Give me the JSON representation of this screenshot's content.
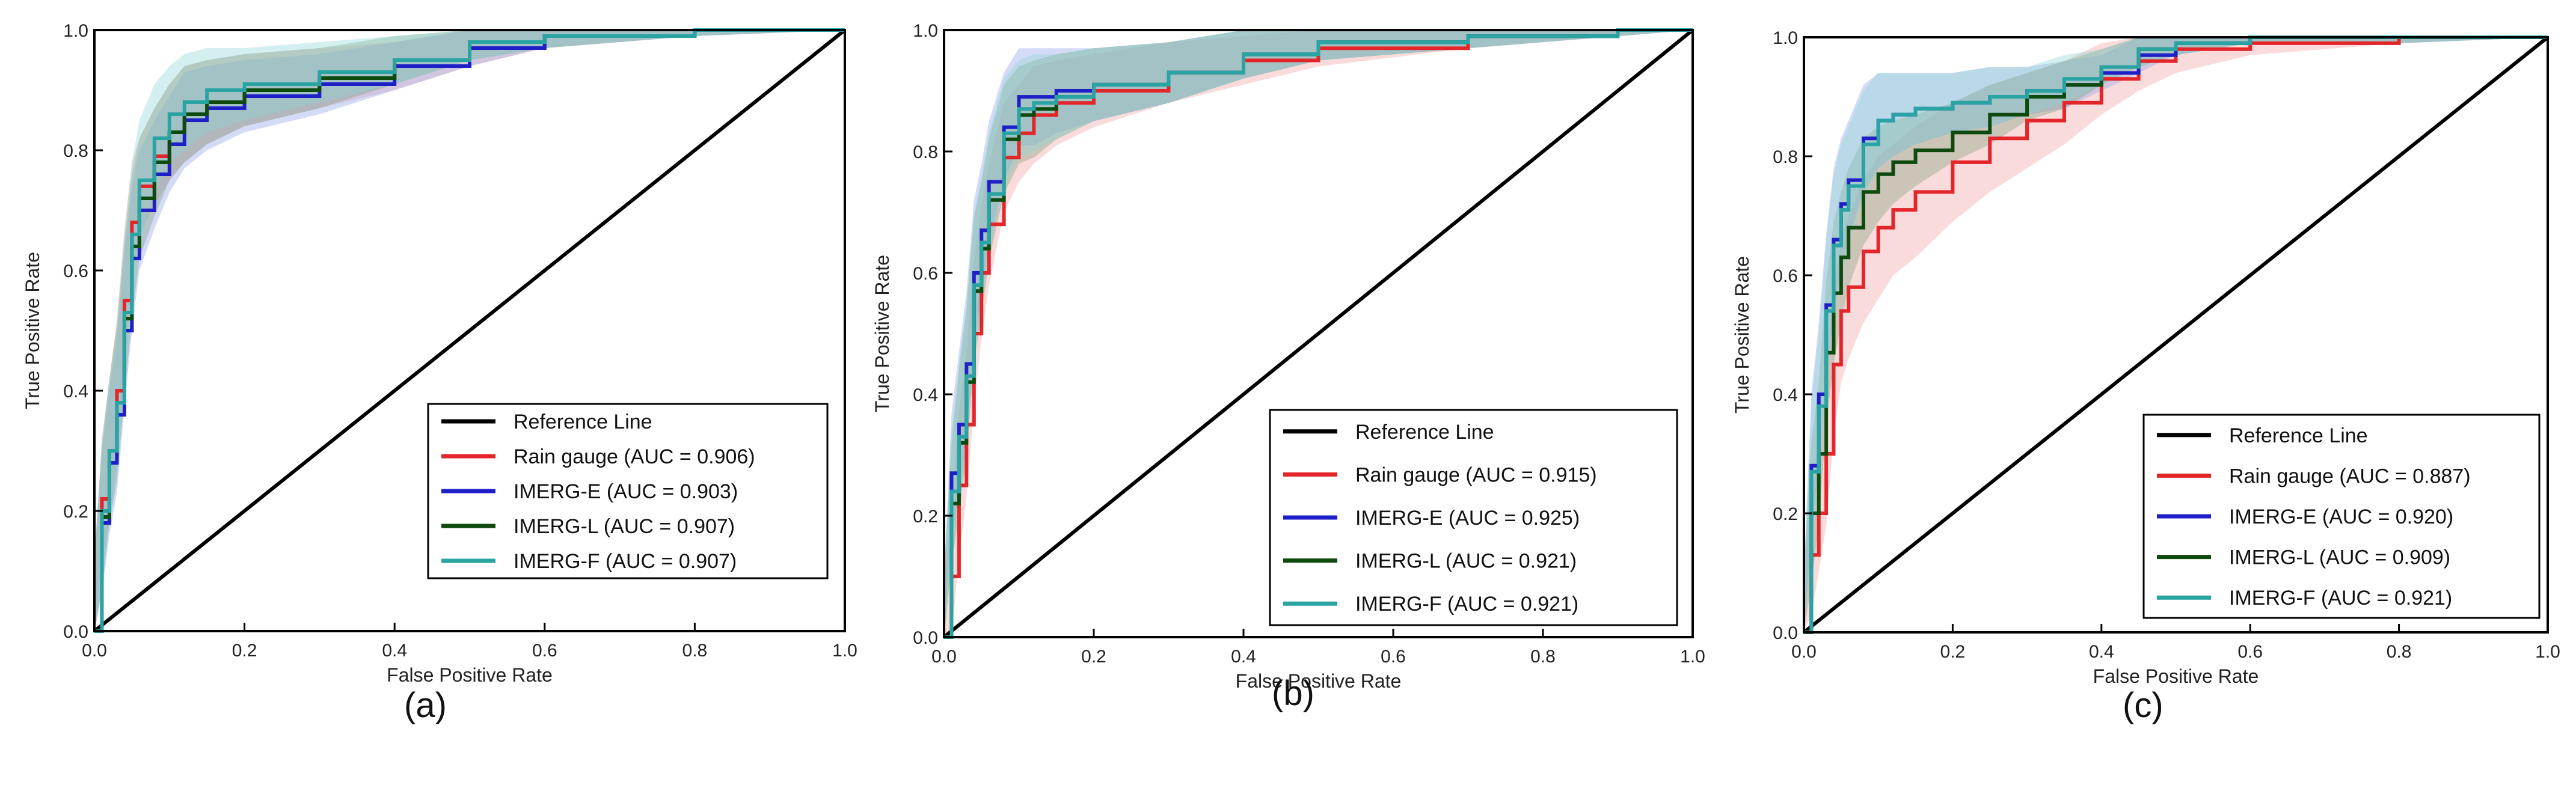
{
  "figure": {
    "panel_labels": [
      "(a)",
      "(b)",
      "(c)"
    ]
  },
  "chart_data": [
    {
      "type": "line",
      "subtype": "roc",
      "panel": "(a)",
      "title": "",
      "xlabel": "False Positive Rate",
      "ylabel": "True Positive Rate",
      "xlim": [
        0.0,
        1.0
      ],
      "ylim": [
        0.0,
        1.0
      ],
      "xticks": [
        "0.0",
        "0.2",
        "0.4",
        "0.6",
        "0.8",
        "1.0"
      ],
      "yticks": [
        "0.0",
        "0.2",
        "0.4",
        "0.6",
        "0.8",
        "1.0"
      ],
      "legend_position": "lower-right",
      "reference": {
        "name": "Reference Line",
        "color": "#000000",
        "x": [
          0,
          1
        ],
        "y": [
          0,
          1
        ]
      },
      "series": [
        {
          "name": "Rain gauge (AUC = 0.906)",
          "color": "#e3262a",
          "x": [
            0,
            0.01,
            0.02,
            0.03,
            0.04,
            0.05,
            0.06,
            0.08,
            0.1,
            0.12,
            0.15,
            0.2,
            0.3,
            0.4,
            0.5,
            0.6,
            0.8,
            1.0
          ],
          "y": [
            0,
            0.22,
            0.3,
            0.4,
            0.55,
            0.68,
            0.74,
            0.79,
            0.83,
            0.86,
            0.88,
            0.9,
            0.92,
            0.94,
            0.97,
            0.99,
            1.0,
            1.0
          ],
          "band": [
            0.12,
            0.1,
            0.12,
            0.12,
            0.12,
            0.1,
            0.08,
            0.08,
            0.08,
            0.08,
            0.07,
            0.06,
            0.05,
            0.04,
            0.03,
            0.02,
            0.01,
            0
          ]
        },
        {
          "name": "IMERG-E (AUC = 0.903)",
          "color": "#1f1fc8",
          "x": [
            0,
            0.01,
            0.02,
            0.03,
            0.04,
            0.05,
            0.06,
            0.08,
            0.1,
            0.12,
            0.15,
            0.2,
            0.3,
            0.4,
            0.5,
            0.6,
            0.8,
            1.0
          ],
          "y": [
            0,
            0.18,
            0.28,
            0.36,
            0.5,
            0.62,
            0.7,
            0.76,
            0.81,
            0.85,
            0.87,
            0.89,
            0.91,
            0.94,
            0.97,
            0.99,
            1.0,
            1.0
          ],
          "band": [
            0.12,
            0.12,
            0.12,
            0.13,
            0.13,
            0.12,
            0.1,
            0.09,
            0.08,
            0.08,
            0.07,
            0.06,
            0.05,
            0.04,
            0.03,
            0.02,
            0.01,
            0
          ]
        },
        {
          "name": "IMERG-L (AUC = 0.907)",
          "color": "#0e4a0e",
          "x": [
            0,
            0.01,
            0.02,
            0.03,
            0.04,
            0.05,
            0.06,
            0.08,
            0.1,
            0.12,
            0.15,
            0.2,
            0.3,
            0.4,
            0.5,
            0.6,
            0.8,
            1.0
          ],
          "y": [
            0,
            0.19,
            0.3,
            0.38,
            0.52,
            0.64,
            0.72,
            0.78,
            0.83,
            0.86,
            0.88,
            0.9,
            0.92,
            0.95,
            0.98,
            0.99,
            1.0,
            1.0
          ],
          "band": [
            0.12,
            0.12,
            0.12,
            0.13,
            0.13,
            0.12,
            0.1,
            0.09,
            0.08,
            0.08,
            0.07,
            0.06,
            0.05,
            0.04,
            0.03,
            0.02,
            0.01,
            0
          ]
        },
        {
          "name": "IMERG-F (AUC = 0.907)",
          "color": "#2aa3a3",
          "x": [
            0,
            0.01,
            0.02,
            0.03,
            0.04,
            0.05,
            0.06,
            0.08,
            0.1,
            0.12,
            0.15,
            0.2,
            0.3,
            0.4,
            0.5,
            0.6,
            0.8,
            1.0
          ],
          "y": [
            0,
            0.2,
            0.3,
            0.38,
            0.53,
            0.66,
            0.75,
            0.82,
            0.86,
            0.88,
            0.9,
            0.91,
            0.93,
            0.95,
            0.98,
            0.99,
            1.0,
            1.0
          ],
          "band": [
            0.12,
            0.12,
            0.12,
            0.13,
            0.13,
            0.12,
            0.1,
            0.09,
            0.08,
            0.08,
            0.07,
            0.06,
            0.05,
            0.04,
            0.03,
            0.02,
            0.01,
            0
          ]
        }
      ]
    },
    {
      "type": "line",
      "subtype": "roc",
      "panel": "(b)",
      "title": "",
      "xlabel": "False Positive Rate",
      "ylabel": "True Positive Rate",
      "xlim": [
        0.0,
        1.0
      ],
      "ylim": [
        0.0,
        1.0
      ],
      "xticks": [
        "0.0",
        "0.2",
        "0.4",
        "0.6",
        "0.8",
        "1.0"
      ],
      "yticks": [
        "0.0",
        "0.2",
        "0.4",
        "0.6",
        "0.8",
        "1.0"
      ],
      "legend_position": "lower-right",
      "reference": {
        "name": "Reference Line",
        "color": "#000000",
        "x": [
          0,
          1
        ],
        "y": [
          0,
          1
        ]
      },
      "series": [
        {
          "name": "Rain gauge (AUC = 0.915)",
          "color": "#e3262a",
          "x": [
            0,
            0.01,
            0.02,
            0.03,
            0.04,
            0.05,
            0.06,
            0.08,
            0.1,
            0.12,
            0.15,
            0.2,
            0.3,
            0.4,
            0.5,
            0.7,
            0.9,
            1.0
          ],
          "y": [
            0,
            0.1,
            0.25,
            0.35,
            0.5,
            0.6,
            0.68,
            0.79,
            0.83,
            0.86,
            0.88,
            0.9,
            0.93,
            0.95,
            0.97,
            0.99,
            1.0,
            1.0
          ],
          "band": [
            0.1,
            0.1,
            0.12,
            0.12,
            0.12,
            0.11,
            0.1,
            0.09,
            0.08,
            0.08,
            0.07,
            0.06,
            0.05,
            0.04,
            0.03,
            0.02,
            0.01,
            0
          ]
        },
        {
          "name": "IMERG-E (AUC = 0.925)",
          "color": "#1f1fc8",
          "x": [
            0,
            0.01,
            0.02,
            0.03,
            0.04,
            0.05,
            0.06,
            0.08,
            0.1,
            0.12,
            0.15,
            0.2,
            0.3,
            0.4,
            0.5,
            0.7,
            0.9,
            1.0
          ],
          "y": [
            0,
            0.27,
            0.35,
            0.45,
            0.6,
            0.67,
            0.75,
            0.84,
            0.89,
            0.89,
            0.9,
            0.91,
            0.93,
            0.96,
            0.98,
            0.99,
            1.0,
            1.0
          ],
          "band": [
            0.1,
            0.1,
            0.12,
            0.12,
            0.12,
            0.11,
            0.1,
            0.09,
            0.08,
            0.08,
            0.07,
            0.06,
            0.05,
            0.04,
            0.03,
            0.02,
            0.01,
            0
          ]
        },
        {
          "name": "IMERG-L (AUC = 0.921)",
          "color": "#0e4a0e",
          "x": [
            0,
            0.01,
            0.02,
            0.03,
            0.04,
            0.05,
            0.06,
            0.08,
            0.1,
            0.12,
            0.15,
            0.2,
            0.3,
            0.4,
            0.5,
            0.7,
            0.9,
            1.0
          ],
          "y": [
            0,
            0.22,
            0.32,
            0.42,
            0.57,
            0.64,
            0.72,
            0.82,
            0.86,
            0.87,
            0.89,
            0.91,
            0.93,
            0.96,
            0.98,
            0.99,
            1.0,
            1.0
          ],
          "band": [
            0.1,
            0.1,
            0.12,
            0.12,
            0.12,
            0.11,
            0.1,
            0.09,
            0.08,
            0.08,
            0.07,
            0.06,
            0.05,
            0.04,
            0.03,
            0.02,
            0.01,
            0
          ]
        },
        {
          "name": "IMERG-F (AUC = 0.921)",
          "color": "#2aa3a3",
          "x": [
            0,
            0.01,
            0.02,
            0.03,
            0.04,
            0.05,
            0.06,
            0.08,
            0.1,
            0.12,
            0.15,
            0.2,
            0.3,
            0.4,
            0.5,
            0.7,
            0.9,
            1.0
          ],
          "y": [
            0,
            0.24,
            0.33,
            0.43,
            0.58,
            0.65,
            0.73,
            0.83,
            0.87,
            0.88,
            0.89,
            0.91,
            0.93,
            0.96,
            0.98,
            0.99,
            1.0,
            1.0
          ],
          "band": [
            0.1,
            0.1,
            0.12,
            0.12,
            0.12,
            0.11,
            0.1,
            0.09,
            0.08,
            0.08,
            0.07,
            0.06,
            0.05,
            0.04,
            0.03,
            0.02,
            0.01,
            0
          ]
        }
      ]
    },
    {
      "type": "line",
      "subtype": "roc",
      "panel": "(c)",
      "title": "",
      "xlabel": "False Positive Rate",
      "ylabel": "True Positive Rate",
      "xlim": [
        0.0,
        1.0
      ],
      "ylim": [
        0.0,
        1.0
      ],
      "xticks": [
        "0.0",
        "0.2",
        "0.4",
        "0.6",
        "0.8",
        "1.0"
      ],
      "yticks": [
        "0.0",
        "0.2",
        "0.4",
        "0.6",
        "0.8",
        "1.0"
      ],
      "legend_position": "lower-right",
      "reference": {
        "name": "Reference Line",
        "color": "#000000",
        "x": [
          0,
          1
        ],
        "y": [
          0,
          1
        ]
      },
      "series": [
        {
          "name": "Rain gauge (AUC = 0.887)",
          "color": "#e3262a",
          "x": [
            0,
            0.01,
            0.02,
            0.03,
            0.04,
            0.05,
            0.06,
            0.08,
            0.1,
            0.12,
            0.15,
            0.2,
            0.25,
            0.3,
            0.35,
            0.4,
            0.45,
            0.5,
            0.6,
            0.8,
            1.0
          ],
          "y": [
            0,
            0.13,
            0.2,
            0.3,
            0.45,
            0.54,
            0.58,
            0.64,
            0.68,
            0.71,
            0.74,
            0.79,
            0.83,
            0.86,
            0.89,
            0.93,
            0.96,
            0.98,
            0.99,
            1.0,
            1.0
          ],
          "band": [
            0.1,
            0.1,
            0.1,
            0.12,
            0.12,
            0.12,
            0.12,
            0.12,
            0.12,
            0.11,
            0.11,
            0.1,
            0.09,
            0.08,
            0.07,
            0.06,
            0.05,
            0.04,
            0.02,
            0.01,
            0
          ]
        },
        {
          "name": "IMERG-E (AUC = 0.920)",
          "color": "#1f1fc8",
          "x": [
            0,
            0.01,
            0.02,
            0.03,
            0.04,
            0.05,
            0.06,
            0.08,
            0.1,
            0.12,
            0.15,
            0.2,
            0.25,
            0.3,
            0.35,
            0.4,
            0.45,
            0.5,
            0.6,
            0.8,
            1.0
          ],
          "y": [
            0,
            0.28,
            0.4,
            0.55,
            0.66,
            0.72,
            0.76,
            0.83,
            0.86,
            0.87,
            0.88,
            0.89,
            0.9,
            0.91,
            0.92,
            0.94,
            0.97,
            0.99,
            1.0,
            1.0,
            1.0
          ],
          "band": [
            0.1,
            0.12,
            0.12,
            0.12,
            0.12,
            0.11,
            0.1,
            0.09,
            0.08,
            0.07,
            0.06,
            0.05,
            0.05,
            0.04,
            0.04,
            0.03,
            0.03,
            0.02,
            0.01,
            0.01,
            0
          ]
        },
        {
          "name": "IMERG-L (AUC = 0.909)",
          "color": "#0e4a0e",
          "x": [
            0,
            0.01,
            0.02,
            0.03,
            0.04,
            0.05,
            0.06,
            0.08,
            0.1,
            0.12,
            0.15,
            0.2,
            0.25,
            0.3,
            0.35,
            0.4,
            0.45,
            0.5,
            0.6,
            0.8,
            1.0
          ],
          "y": [
            0,
            0.2,
            0.3,
            0.47,
            0.57,
            0.63,
            0.68,
            0.74,
            0.77,
            0.79,
            0.81,
            0.84,
            0.87,
            0.9,
            0.92,
            0.95,
            0.98,
            0.99,
            1.0,
            1.0,
            1.0
          ],
          "band": [
            0.1,
            0.12,
            0.12,
            0.12,
            0.12,
            0.11,
            0.1,
            0.09,
            0.08,
            0.07,
            0.06,
            0.05,
            0.05,
            0.04,
            0.04,
            0.03,
            0.03,
            0.02,
            0.01,
            0.01,
            0
          ]
        },
        {
          "name": "IMERG-F (AUC = 0.921)",
          "color": "#2aa3a3",
          "x": [
            0,
            0.01,
            0.02,
            0.03,
            0.04,
            0.05,
            0.06,
            0.08,
            0.1,
            0.12,
            0.15,
            0.2,
            0.25,
            0.3,
            0.35,
            0.4,
            0.45,
            0.5,
            0.6,
            0.8,
            1.0
          ],
          "y": [
            0,
            0.27,
            0.38,
            0.54,
            0.65,
            0.71,
            0.75,
            0.82,
            0.86,
            0.87,
            0.88,
            0.89,
            0.9,
            0.91,
            0.93,
            0.95,
            0.98,
            0.99,
            1.0,
            1.0,
            1.0
          ],
          "band": [
            0.1,
            0.12,
            0.12,
            0.12,
            0.12,
            0.11,
            0.1,
            0.09,
            0.08,
            0.07,
            0.06,
            0.05,
            0.05,
            0.04,
            0.04,
            0.03,
            0.03,
            0.02,
            0.01,
            0.01,
            0
          ]
        }
      ]
    }
  ]
}
